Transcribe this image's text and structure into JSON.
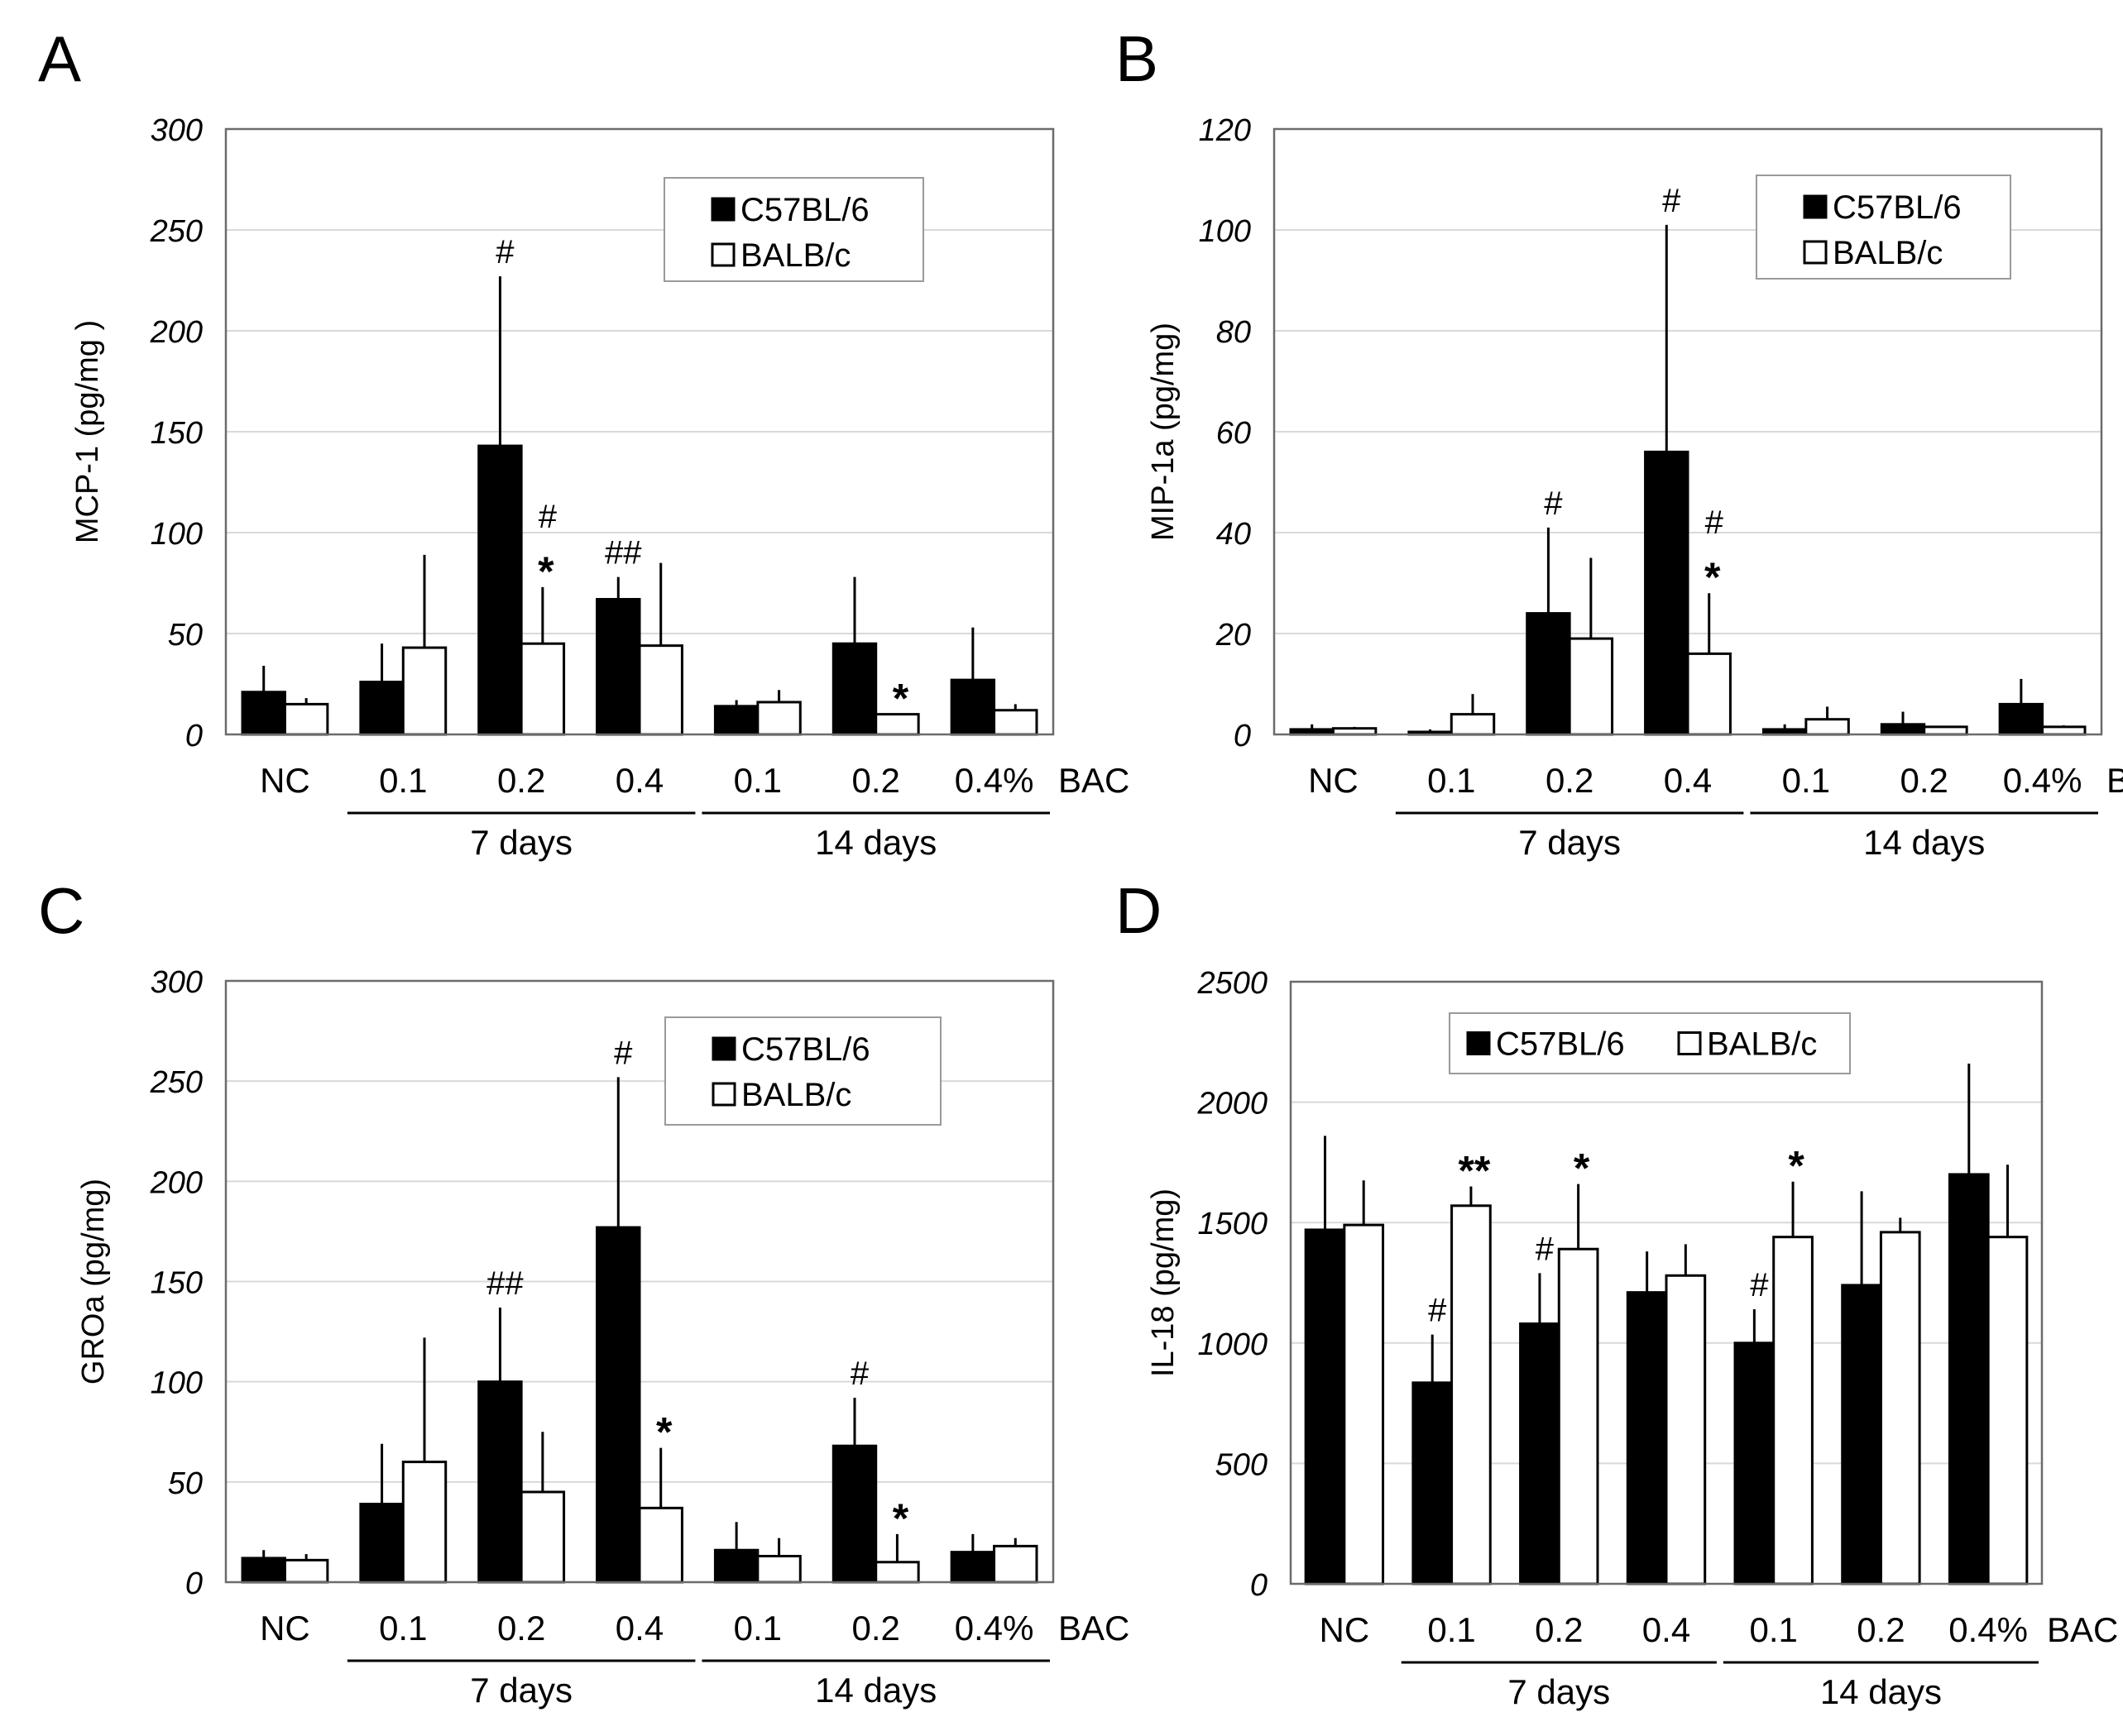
{
  "colors": {
    "series_fill": [
      "#000000",
      "#ffffff"
    ],
    "stroke": "#000000",
    "grid": "#d9d9d9"
  },
  "chart_data": [
    {
      "panel": "A",
      "type": "bar",
      "ylabel": "MCP-1 (pg/mg )",
      "ylim": [
        0,
        300
      ],
      "yticks": [
        0,
        50,
        100,
        150,
        200,
        250,
        300
      ],
      "yticks_labels": [
        "0",
        "50",
        "100",
        "150",
        "200",
        "250",
        "300"
      ],
      "categories": [
        "NC",
        "0.1",
        "0.2",
        "0.4",
        "0.1",
        "0.2",
        "0.4%"
      ],
      "unit_label": "BAC",
      "groups": [
        {
          "label": "7 days",
          "from": 1,
          "to": 3
        },
        {
          "label": "14 days",
          "from": 4,
          "to": 6
        }
      ],
      "legend_position": "top-right",
      "legend_layout": "vertical",
      "series": [
        {
          "name": "C57BL/6",
          "values": [
            21,
            26,
            143,
            67,
            14,
            45,
            27
          ],
          "errors": [
            13,
            19,
            84,
            11,
            3,
            33,
            26
          ],
          "annotations": [
            "",
            "",
            "#",
            "##",
            "",
            "",
            ""
          ]
        },
        {
          "name": "BALB/c",
          "values": [
            15,
            43,
            45,
            44,
            16,
            10,
            12
          ],
          "errors": [
            3,
            46,
            28,
            41,
            6,
            0,
            3
          ],
          "annotations": [
            "",
            "",
            "#|*",
            "",
            "",
            "*",
            ""
          ]
        }
      ]
    },
    {
      "panel": "B",
      "type": "bar",
      "ylabel": "MIP-1a (pg/mg)",
      "ylim": [
        0,
        120
      ],
      "yticks": [
        0,
        20,
        40,
        60,
        80,
        100,
        120
      ],
      "yticks_labels": [
        "0",
        "20",
        "40",
        "60",
        "80",
        "100",
        "120"
      ],
      "categories": [
        "NC",
        "0.1",
        "0.2",
        "0.4",
        "0.1",
        "0.2",
        "0.4%"
      ],
      "unit_label": "BAC",
      "groups": [
        {
          "label": "7 days",
          "from": 1,
          "to": 3
        },
        {
          "label": "14 days",
          "from": 4,
          "to": 6
        }
      ],
      "legend_position": "top-right",
      "legend_layout": "vertical",
      "series": [
        {
          "name": "C57BL/6",
          "values": [
            1,
            0.5,
            24,
            56,
            1,
            2,
            6
          ],
          "errors": [
            1,
            0.5,
            17,
            45,
            1,
            2.5,
            5
          ],
          "annotations": [
            "",
            "",
            "#",
            "#",
            "",
            "",
            ""
          ]
        },
        {
          "name": "BALB/c",
          "values": [
            1.2,
            4,
            19,
            16,
            3,
            1.5,
            1.5
          ],
          "errors": [
            0.3,
            4,
            16,
            12,
            2.5,
            0,
            0.3
          ],
          "annotations": [
            "",
            "",
            "",
            "#|*",
            "",
            "",
            ""
          ]
        }
      ]
    },
    {
      "panel": "C",
      "type": "bar",
      "ylabel": "GROa  (pg/mg)",
      "ylim": [
        0,
        300
      ],
      "yticks": [
        0,
        50,
        100,
        150,
        200,
        250,
        300
      ],
      "yticks_labels": [
        "0",
        "50",
        "100",
        "150",
        "200",
        "250",
        "300"
      ],
      "categories": [
        "NC",
        "0.1",
        "0.2",
        "0.4",
        "0.1",
        "0.2",
        "0.4%"
      ],
      "unit_label": "BAC",
      "groups": [
        {
          "label": "7 days",
          "from": 1,
          "to": 3
        },
        {
          "label": "14 days",
          "from": 4,
          "to": 6
        }
      ],
      "legend_position": "top-right",
      "legend_layout": "vertical",
      "series": [
        {
          "name": "C57BL/6",
          "values": [
            12,
            39,
            100,
            177,
            16,
            68,
            15
          ],
          "errors": [
            4,
            30,
            37,
            75,
            14,
            24,
            9
          ],
          "annotations": [
            "",
            "",
            "##",
            "#",
            "",
            "#",
            ""
          ]
        },
        {
          "name": "BALB/c",
          "values": [
            11,
            60,
            45,
            37,
            13,
            10,
            18
          ],
          "errors": [
            3,
            62,
            30,
            30,
            9,
            14,
            4
          ],
          "annotations": [
            "",
            "",
            "",
            "*",
            "",
            "*",
            ""
          ]
        }
      ]
    },
    {
      "panel": "D",
      "type": "bar",
      "ylabel": "IL-18 (pg/mg)",
      "ylim": [
        0,
        2500
      ],
      "yticks": [
        0,
        500,
        1000,
        1500,
        2000,
        2500
      ],
      "yticks_labels": [
        "0",
        "500",
        "1000",
        "1500",
        "2000",
        "2500"
      ],
      "categories": [
        "NC",
        "0.1",
        "0.2",
        "0.4",
        "0.1",
        "0.2",
        "0.4%"
      ],
      "unit_label": "BAC",
      "groups": [
        {
          "label": "7 days",
          "from": 1,
          "to": 3
        },
        {
          "label": "14 days",
          "from": 4,
          "to": 6
        }
      ],
      "legend_position": "top-center",
      "legend_layout": "horizontal",
      "series": [
        {
          "name": "C57BL/6",
          "values": [
            1470,
            835,
            1080,
            1210,
            1000,
            1240,
            1700
          ],
          "errors": [
            390,
            200,
            210,
            170,
            140,
            390,
            460
          ],
          "annotations": [
            "",
            "#",
            "#",
            "",
            "#",
            "",
            ""
          ]
        },
        {
          "name": "BALB/c",
          "values": [
            1490,
            1570,
            1390,
            1280,
            1440,
            1460,
            1440
          ],
          "errors": [
            185,
            80,
            270,
            130,
            230,
            60,
            300
          ],
          "annotations": [
            "",
            "**",
            "*",
            "",
            "*",
            "",
            ""
          ]
        }
      ]
    }
  ]
}
